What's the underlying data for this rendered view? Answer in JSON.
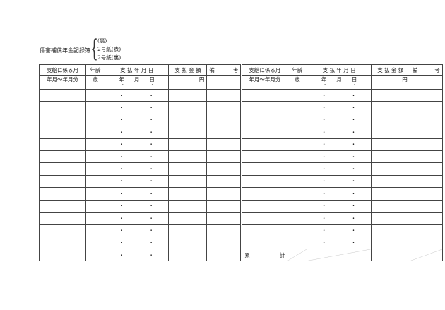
{
  "title": "傷害補償年金記録簿",
  "sheets": [
    "(裏)",
    "2号紙(表)",
    "2号紙(裏)"
  ],
  "headers": [
    "支給に係る月",
    "年齢",
    "支 払 年 月 日",
    "支 払 金 額",
    "備",
    "考"
  ],
  "units": {
    "month": "年月～年月分",
    "age": "歳",
    "year": "年",
    "mon": "月",
    "day": "日",
    "yen": "円"
  },
  "dots": "・ ・",
  "total": {
    "a": "累",
    "b": "計"
  }
}
